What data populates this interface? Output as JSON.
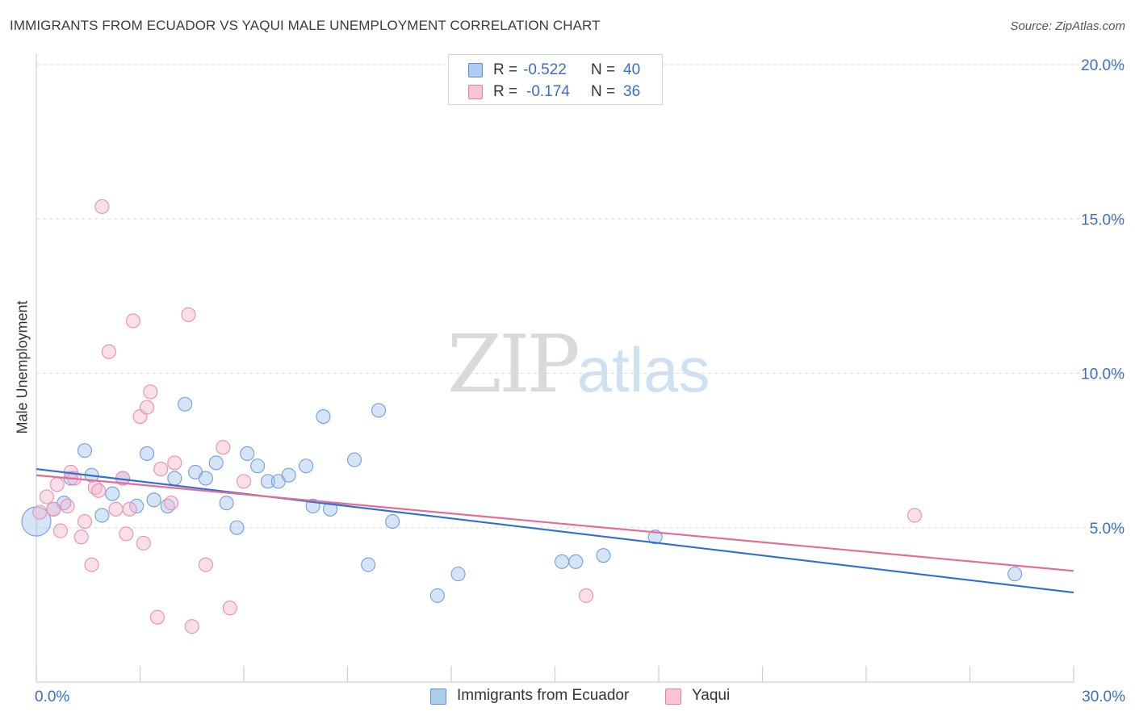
{
  "header": {
    "title": "IMMIGRANTS FROM ECUADOR VS YAQUI MALE UNEMPLOYMENT CORRELATION CHART",
    "source": "Source: ZipAtlas.com"
  },
  "watermark": {
    "part1": "ZIP",
    "part2": "atlas"
  },
  "legend": {
    "rows": [
      {
        "r_label": "R =",
        "r_value": "-0.522",
        "n_label": "N =",
        "n_value": "40",
        "color": "#aecbf0",
        "border": "#5b8fd6"
      },
      {
        "r_label": "R =",
        "r_value": "-0.174",
        "n_label": "N =",
        "n_value": "36",
        "color": "#f8c4d3",
        "border": "#e87fa2"
      }
    ]
  },
  "bottom_legend": [
    {
      "label": "Immigrants from Ecuador",
      "color": "#aecbf0",
      "border": "#5b8fd6"
    },
    {
      "label": "Yaqui",
      "color": "#f8c4d3",
      "border": "#e87fa2"
    }
  ],
  "colors": {
    "blue_fill": "rgba(164,196,238,0.45)",
    "blue_stroke": "#6f9fdc",
    "blue_line": "#2f6fd0",
    "pink_fill": "rgba(246,184,203,0.45)",
    "pink_stroke": "#e98fae",
    "pink_line": "#e26d97",
    "tick_label": "#3a6fc4",
    "grid": "#dcdcdc"
  },
  "chart_data": {
    "type": "scatter",
    "title": "IMMIGRANTS FROM ECUADOR VS YAQUI MALE UNEMPLOYMENT CORRELATION CHART",
    "xlabel": "",
    "ylabel": "Male Unemployment",
    "xlim": [
      0,
      30
    ],
    "ylim": [
      0,
      20
    ],
    "x_tick_labels": [
      "0.0%",
      "30.0%"
    ],
    "y_ticks": [
      5,
      10,
      15,
      20
    ],
    "y_tick_labels": [
      "5.0%",
      "10.0%",
      "15.0%",
      "20.0%"
    ],
    "grid": true,
    "legend_position": "top-center",
    "series": [
      {
        "name": "Immigrants from Ecuador",
        "r": -0.522,
        "n": 40,
        "points": [
          [
            0.0,
            5.2
          ],
          [
            0.5,
            5.6
          ],
          [
            0.8,
            5.8
          ],
          [
            1.0,
            6.6
          ],
          [
            1.4,
            7.5
          ],
          [
            1.6,
            6.7
          ],
          [
            1.9,
            5.4
          ],
          [
            2.2,
            6.1
          ],
          [
            2.5,
            6.6
          ],
          [
            2.9,
            5.7
          ],
          [
            3.2,
            7.4
          ],
          [
            3.4,
            5.9
          ],
          [
            3.8,
            5.7
          ],
          [
            4.0,
            6.6
          ],
          [
            4.3,
            9.0
          ],
          [
            4.6,
            6.8
          ],
          [
            4.9,
            6.6
          ],
          [
            5.2,
            7.1
          ],
          [
            5.5,
            5.8
          ],
          [
            5.8,
            5.0
          ],
          [
            6.1,
            7.4
          ],
          [
            6.4,
            7.0
          ],
          [
            6.7,
            6.5
          ],
          [
            7.0,
            6.5
          ],
          [
            7.3,
            6.7
          ],
          [
            7.8,
            7.0
          ],
          [
            8.0,
            5.7
          ],
          [
            8.3,
            8.6
          ],
          [
            8.5,
            5.6
          ],
          [
            9.2,
            7.2
          ],
          [
            9.6,
            3.8
          ],
          [
            9.9,
            8.8
          ],
          [
            10.3,
            5.2
          ],
          [
            11.6,
            2.8
          ],
          [
            12.2,
            3.5
          ],
          [
            15.2,
            3.9
          ],
          [
            15.6,
            3.9
          ],
          [
            16.4,
            4.1
          ],
          [
            17.9,
            4.7
          ],
          [
            28.3,
            3.5
          ]
        ],
        "trend": {
          "x": [
            0,
            30
          ],
          "y": [
            6.9,
            2.9
          ]
        }
      },
      {
        "name": "Yaqui",
        "r": -0.174,
        "n": 36,
        "points": [
          [
            0.1,
            5.5
          ],
          [
            0.3,
            6.0
          ],
          [
            0.5,
            5.6
          ],
          [
            0.6,
            6.4
          ],
          [
            0.7,
            4.9
          ],
          [
            0.9,
            5.7
          ],
          [
            1.0,
            6.8
          ],
          [
            1.1,
            6.6
          ],
          [
            1.3,
            4.7
          ],
          [
            1.4,
            5.2
          ],
          [
            1.6,
            3.8
          ],
          [
            1.7,
            6.3
          ],
          [
            1.8,
            6.2
          ],
          [
            1.9,
            15.4
          ],
          [
            2.1,
            10.7
          ],
          [
            2.3,
            5.6
          ],
          [
            2.5,
            6.6
          ],
          [
            2.6,
            4.8
          ],
          [
            2.7,
            5.6
          ],
          [
            2.8,
            11.7
          ],
          [
            3.0,
            8.6
          ],
          [
            3.1,
            4.5
          ],
          [
            3.2,
            8.9
          ],
          [
            3.3,
            9.4
          ],
          [
            3.5,
            2.1
          ],
          [
            3.6,
            6.9
          ],
          [
            3.9,
            5.8
          ],
          [
            4.0,
            7.1
          ],
          [
            4.4,
            11.9
          ],
          [
            4.5,
            1.8
          ],
          [
            4.9,
            3.8
          ],
          [
            5.4,
            7.6
          ],
          [
            5.6,
            2.4
          ],
          [
            6.0,
            6.5
          ],
          [
            15.9,
            2.8
          ],
          [
            25.4,
            5.4
          ]
        ],
        "trend": {
          "x": [
            0,
            30
          ],
          "y": [
            6.7,
            3.6
          ]
        }
      }
    ]
  }
}
